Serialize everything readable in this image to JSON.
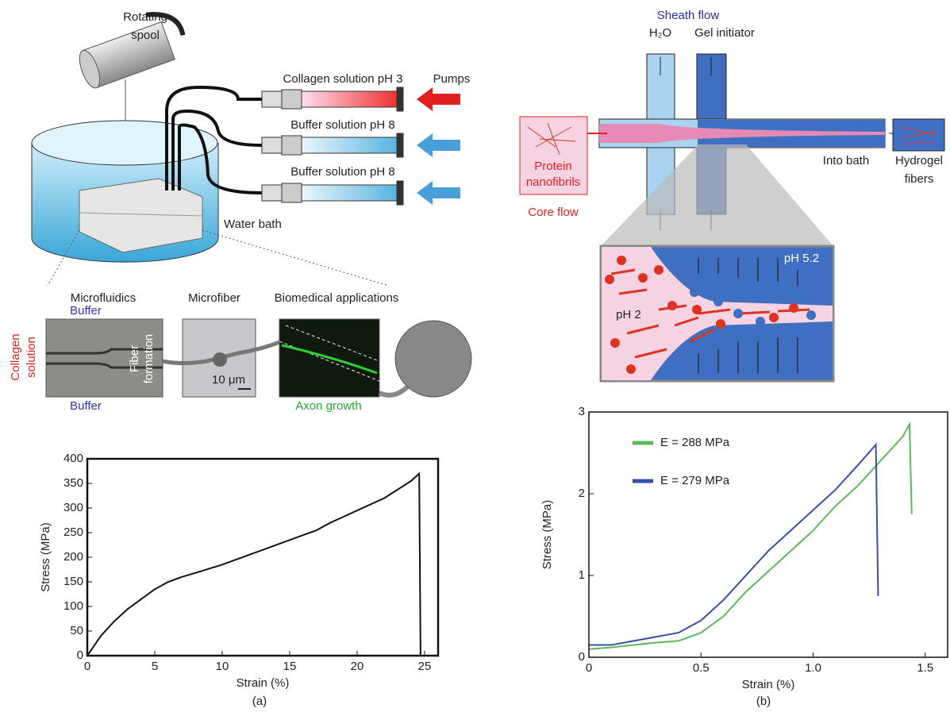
{
  "diagram_a": {
    "rotating_spool": [
      "Rotating",
      "spool"
    ],
    "pumps": "Pumps",
    "syringes": [
      "Collagen solution pH 3",
      "Buffer solution pH 8",
      "Buffer solution pH 8"
    ],
    "water_bath": "Water bath",
    "stages": [
      "Microfluidics",
      "Microfiber",
      "Biomedical applications"
    ],
    "buffer_top": "Buffer",
    "buffer_bottom": "Buffer",
    "collagen_solution": [
      "Collagen",
      "solution"
    ],
    "fiber_formation": [
      "Fiber",
      "formation"
    ],
    "scale_bar": "10 μm",
    "axon_growth": "Axon growth"
  },
  "diagram_b": {
    "sheath_flow": "Sheath flow",
    "water": "H₂O",
    "gel_initiator": "Gel initiator",
    "protein_nanofibrils": [
      "Protein",
      "nanofibrils"
    ],
    "core_flow": "Core flow",
    "into_bath": "Into bath",
    "hydrogel_fibers": [
      "Hydrogel",
      "fibers"
    ],
    "ph_outer": "pH 5.2",
    "ph_inner": "pH 2"
  },
  "figure": {
    "captions": [
      "(a)",
      "(b)"
    ]
  },
  "chart_data": [
    {
      "type": "line",
      "x_label": "Strain (%)",
      "y_label": "Stress (MPa)",
      "color": "#111111",
      "x": [
        0,
        1,
        2,
        3,
        4,
        5,
        6,
        7,
        8,
        10,
        12,
        15,
        17,
        18,
        20,
        22,
        24,
        24.6,
        24.7
      ],
      "values": [
        0,
        40,
        70,
        95,
        115,
        135,
        150,
        160,
        168,
        185,
        205,
        235,
        255,
        270,
        295,
        320,
        355,
        370,
        0
      ],
      "xlim": [
        0,
        26
      ],
      "ylim": [
        0,
        400
      ],
      "xticks": [
        0,
        5,
        10,
        15,
        20,
        25
      ],
      "yticks": [
        0,
        50,
        100,
        150,
        200,
        250,
        300,
        350,
        400
      ]
    },
    {
      "type": "line",
      "x_label": "Strain (%)",
      "y_label": "Stress (MPa)",
      "legend": "upper left",
      "series": [
        {
          "name": "E = 288 MPa",
          "color": "#5cb85c",
          "x": [
            0,
            0.1,
            0.2,
            0.3,
            0.4,
            0.5,
            0.6,
            0.7,
            0.8,
            0.9,
            1.0,
            1.1,
            1.2,
            1.3,
            1.4,
            1.43,
            1.44
          ],
          "values": [
            0.1,
            0.12,
            0.15,
            0.18,
            0.2,
            0.3,
            0.5,
            0.8,
            1.05,
            1.3,
            1.55,
            1.85,
            2.1,
            2.4,
            2.7,
            2.85,
            1.75
          ]
        },
        {
          "name": "E = 279 MPa",
          "color": "#3a4ea6",
          "x": [
            0,
            0.1,
            0.2,
            0.3,
            0.4,
            0.5,
            0.6,
            0.7,
            0.8,
            0.9,
            1.0,
            1.1,
            1.2,
            1.28,
            1.29
          ],
          "values": [
            0.15,
            0.15,
            0.2,
            0.25,
            0.3,
            0.45,
            0.7,
            1.0,
            1.3,
            1.55,
            1.8,
            2.05,
            2.35,
            2.6,
            0.75
          ]
        }
      ],
      "xlim": [
        0,
        1.6
      ],
      "ylim": [
        0,
        3
      ],
      "xticks": [
        0,
        0.5,
        {
          "value": 1.0,
          "label": "1.0"
        },
        1.5
      ],
      "yticks": [
        0,
        1,
        2,
        3
      ]
    }
  ]
}
